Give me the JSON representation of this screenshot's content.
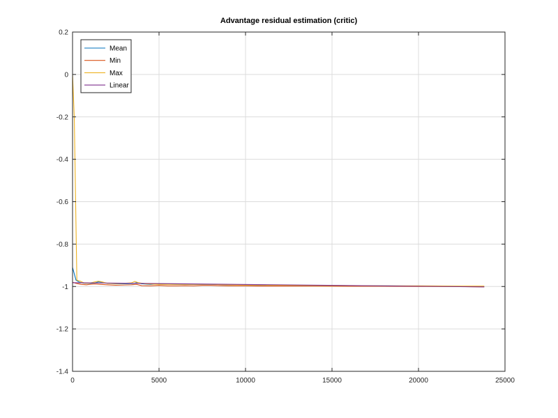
{
  "chart_data": {
    "type": "line",
    "title": "Advantage residual estimation (critic)",
    "xlabel": "",
    "ylabel": "",
    "xlim": [
      0,
      25000
    ],
    "ylim": [
      -1.4,
      0.2
    ],
    "x_ticks": [
      0,
      5000,
      10000,
      15000,
      20000,
      25000
    ],
    "y_ticks": [
      0.2,
      0,
      -0.2,
      -0.4,
      -0.6,
      -0.8,
      -1,
      -1.2,
      -1.4
    ],
    "grid": true,
    "legend_position": "top-left",
    "series": [
      {
        "name": "Mean",
        "color": "#0072BD",
        "x": [
          0,
          200,
          400,
          700,
          1000,
          1300,
          1500,
          1700,
          2000,
          2500,
          3000,
          3500,
          3700,
          4000,
          4500,
          5000,
          6000,
          7000,
          8000,
          9000,
          10000,
          12000,
          14000,
          16000,
          18000,
          20000,
          22000,
          23800
        ],
        "y": [
          -0.91,
          -0.97,
          -0.98,
          -0.985,
          -0.985,
          -0.983,
          -0.978,
          -0.98,
          -0.985,
          -0.987,
          -0.987,
          -0.986,
          -0.982,
          -0.987,
          -0.99,
          -0.988,
          -0.99,
          -0.99,
          -0.99,
          -0.992,
          -0.993,
          -0.994,
          -0.995,
          -0.996,
          -0.997,
          -0.998,
          -0.999,
          -1.0
        ]
      },
      {
        "name": "Min",
        "color": "#D95319",
        "x": [
          0,
          200,
          500,
          800,
          1000,
          1300,
          1600,
          2000,
          2500,
          3000,
          3400,
          3700,
          4000,
          4500,
          5000,
          5500,
          6000,
          6500,
          7000,
          7500,
          8000,
          8500,
          9000,
          10000,
          11000,
          12000,
          14000,
          16000,
          18000,
          20000,
          22000,
          23800
        ],
        "y": [
          -0.98,
          -0.985,
          -0.99,
          -0.992,
          -0.99,
          -0.988,
          -0.99,
          -0.992,
          -0.994,
          -0.993,
          -0.992,
          -0.99,
          -0.996,
          -0.997,
          -0.995,
          -0.997,
          -0.997,
          -0.996,
          -0.997,
          -0.995,
          -0.995,
          -0.996,
          -0.997,
          -0.997,
          -0.998,
          -0.998,
          -0.998,
          -0.999,
          -0.999,
          -1.0,
          -1.0,
          -1.002
        ]
      },
      {
        "name": "Max",
        "color": "#EDB120",
        "x": [
          0,
          100,
          250,
          450,
          700,
          1000,
          1300,
          1500,
          1700,
          2000,
          2500,
          3000,
          3400,
          3600,
          3800,
          4200,
          5000,
          6000,
          7000,
          8000,
          9000,
          10000,
          12000,
          14000,
          16000,
          18000,
          20000,
          22000,
          23800
        ],
        "y": [
          0.0,
          -0.2,
          -0.97,
          -0.975,
          -0.985,
          -0.984,
          -0.978,
          -0.975,
          -0.978,
          -0.985,
          -0.986,
          -0.985,
          -0.983,
          -0.976,
          -0.982,
          -0.987,
          -0.99,
          -0.99,
          -0.99,
          -0.99,
          -0.992,
          -0.993,
          -0.994,
          -0.995,
          -0.996,
          -0.997,
          -0.997,
          -0.998,
          -0.998
        ]
      },
      {
        "name": "Linear",
        "color": "#7E2F8E",
        "x": [
          0,
          23800
        ],
        "y": [
          -0.982,
          -1.002
        ]
      }
    ]
  }
}
